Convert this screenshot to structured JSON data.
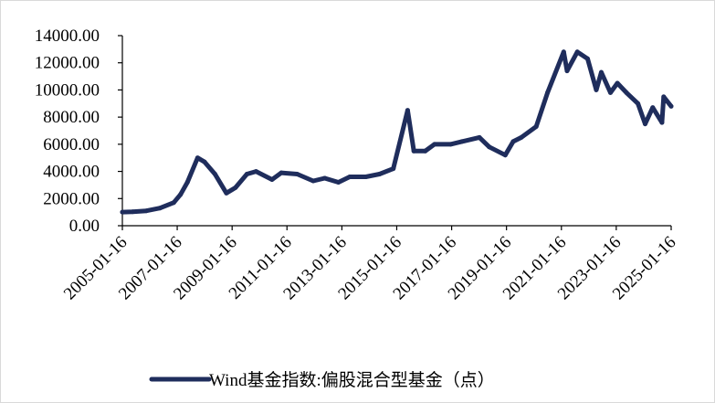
{
  "chart_data": {
    "type": "line",
    "title": "",
    "xlabel": "",
    "ylabel": "",
    "ylim": [
      0,
      14000
    ],
    "xlim": [
      "2005-01-16",
      "2025-01-16"
    ],
    "grid": false,
    "legend_position": "bottom",
    "y_ticks": [
      "0.00",
      "2000.00",
      "4000.00",
      "6000.00",
      "8000.00",
      "10000.00",
      "12000.00",
      "14000.00"
    ],
    "x_ticks": [
      "2005-01-16",
      "2007-01-16",
      "2009-01-16",
      "2011-01-16",
      "2013-01-16",
      "2015-01-16",
      "2017-01-16",
      "2019-01-16",
      "2021-01-16",
      "2023-01-16",
      "2025-01-16"
    ],
    "series": [
      {
        "name": "Wind基金指数:偏股混合型基金（点）",
        "color": "#1f2d5c",
        "x": [
          "2005-01-16",
          "2005-06-01",
          "2005-12-01",
          "2006-06-01",
          "2006-12-01",
          "2007-03-01",
          "2007-06-01",
          "2007-10-15",
          "2008-01-15",
          "2008-06-01",
          "2008-11-01",
          "2009-03-01",
          "2009-08-01",
          "2009-12-01",
          "2010-07-01",
          "2010-11-01",
          "2011-06-01",
          "2011-12-31",
          "2012-06-01",
          "2012-12-01",
          "2013-05-01",
          "2013-12-01",
          "2014-06-01",
          "2014-12-01",
          "2015-06-10",
          "2015-09-01",
          "2016-01-30",
          "2016-06-01",
          "2017-01-01",
          "2017-06-01",
          "2018-01-20",
          "2018-06-01",
          "2018-12-31",
          "2019-04-15",
          "2019-08-01",
          "2020-02-15",
          "2020-07-15",
          "2021-02-15",
          "2021-04-01",
          "2021-08-15",
          "2021-12-31",
          "2022-04-25",
          "2022-07-01",
          "2022-10-31",
          "2023-01-31",
          "2023-06-01",
          "2023-10-31",
          "2024-02-05",
          "2024-05-15",
          "2024-09-15",
          "2024-10-08",
          "2025-01-16"
        ],
        "y": [
          1000,
          1030,
          1100,
          1300,
          1700,
          2300,
          3200,
          5000,
          4700,
          3800,
          2400,
          2800,
          3800,
          4000,
          3400,
          3900,
          3800,
          3300,
          3500,
          3200,
          3600,
          3600,
          3800,
          4200,
          8500,
          5500,
          5500,
          6000,
          6000,
          6200,
          6500,
          5800,
          5200,
          6200,
          6500,
          7300,
          9800,
          12800,
          11400,
          12800,
          12300,
          10000,
          11300,
          9800,
          10500,
          9800,
          9000,
          7500,
          8700,
          7600,
          9500,
          8800
        ]
      }
    ]
  }
}
